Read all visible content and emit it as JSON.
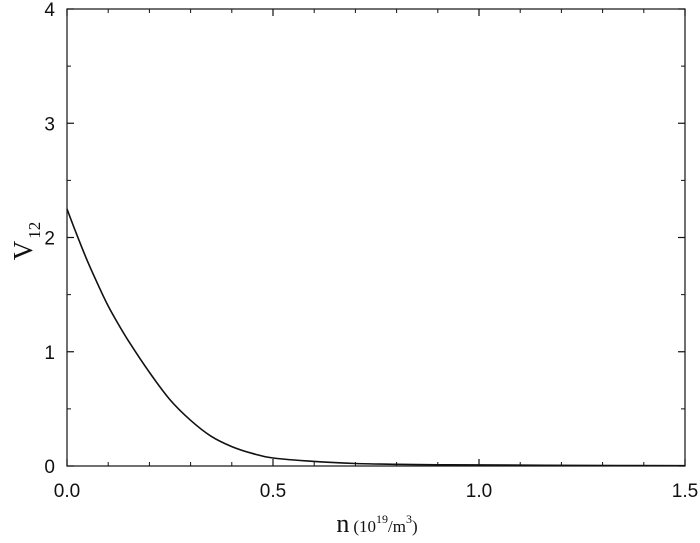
{
  "chart_data": {
    "type": "line",
    "title": "",
    "xlabel": {
      "main": "n",
      "unit_prefix": "(10",
      "unit_exp": "19",
      "unit_mid": "/m",
      "unit_exp2": "3",
      "unit_suffix": ")"
    },
    "ylabel": {
      "main": "V",
      "sub": "12"
    },
    "xlim": [
      0,
      1.5
    ],
    "ylim": [
      0,
      4
    ],
    "xticks": [
      0,
      0.5,
      1.0,
      1.5
    ],
    "xtick_labels": [
      "0.0",
      "0.5",
      "1.0",
      "1.5"
    ],
    "yticks": [
      0,
      1,
      2,
      3,
      4
    ],
    "ytick_labels": [
      "0",
      "1",
      "2",
      "3",
      "4"
    ],
    "grid": false,
    "series": [
      {
        "color": "#111111",
        "x": [
          0.0,
          0.02,
          0.05,
          0.08,
          0.1,
          0.12,
          0.15,
          0.2,
          0.25,
          0.3,
          0.35,
          0.4,
          0.45,
          0.5,
          0.6,
          0.7,
          0.8,
          0.9,
          1.0,
          1.25,
          1.5
        ],
        "y": [
          2.25,
          2.06,
          1.79,
          1.55,
          1.4,
          1.27,
          1.09,
          0.82,
          0.58,
          0.4,
          0.26,
          0.17,
          0.11,
          0.07,
          0.04,
          0.022,
          0.015,
          0.011,
          0.009,
          0.005,
          0.003
        ]
      }
    ]
  }
}
